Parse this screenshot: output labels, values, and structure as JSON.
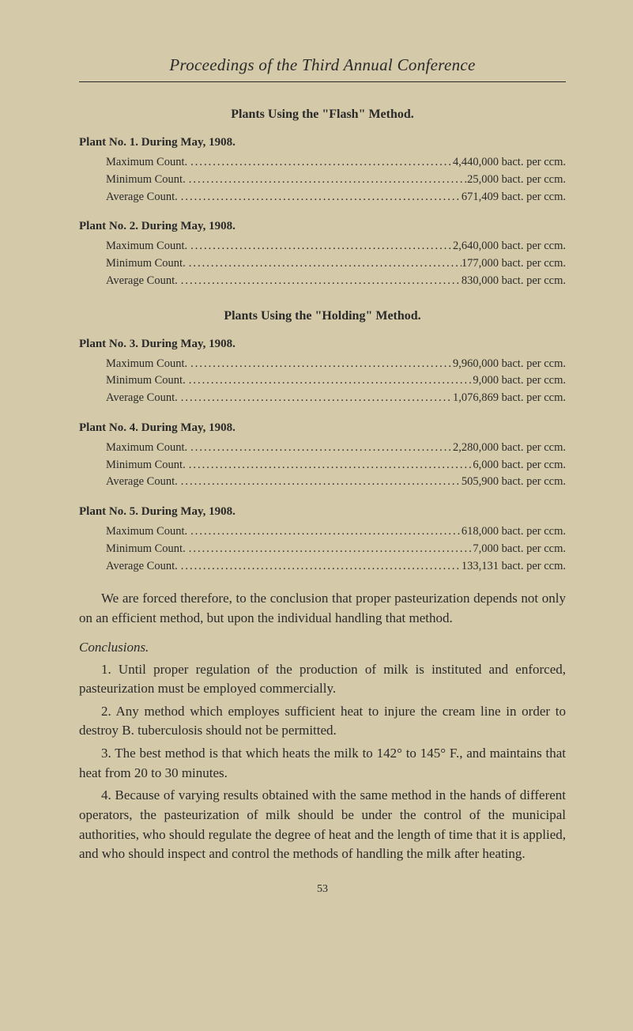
{
  "header": "Proceedings of the Third Annual Conference",
  "section1_title": "Plants Using the \"Flash\" Method.",
  "plants_flash": [
    {
      "heading": "Plant No. 1.  During May, 1908.",
      "rows": [
        {
          "label": "Maximum Count.",
          "value": "4,440,000 bact. per ccm."
        },
        {
          "label": "Minimum Count.",
          "value": "25,000 bact. per ccm."
        },
        {
          "label": "Average   Count.",
          "value": "671,409 bact. per ccm."
        }
      ]
    },
    {
      "heading": "Plant No. 2.  During May, 1908.",
      "rows": [
        {
          "label": "Maximum Count.",
          "value": "2,640,000 bact. per ccm."
        },
        {
          "label": "Minimum Count.",
          "value": "177,000 bact. per ccm."
        },
        {
          "label": "Average   Count.",
          "value": "830,000 bact. per ccm."
        }
      ]
    }
  ],
  "section2_title": "Plants Using the \"Holding\" Method.",
  "plants_holding": [
    {
      "heading": "Plant No. 3.  During May, 1908.",
      "rows": [
        {
          "label": "Maximum Count.",
          "value": "9,960,000 bact. per ccm."
        },
        {
          "label": "Minimum Count.",
          "value": "9,000 bact. per ccm."
        },
        {
          "label": "Average   Count.",
          "value": "1,076,869 bact. per ccm."
        }
      ]
    },
    {
      "heading": "Plant No. 4.  During May, 1908.",
      "rows": [
        {
          "label": "Maximum Count.",
          "value": "2,280,000 bact. per ccm."
        },
        {
          "label": "Minimum Count.",
          "value": "6,000 bact. per ccm."
        },
        {
          "label": "Average   Count.",
          "value": "505,900 bact. per ccm."
        }
      ]
    },
    {
      "heading": "Plant No. 5.  During May, 1908.",
      "rows": [
        {
          "label": "Maximum Count.",
          "value": "618,000 bact. per ccm."
        },
        {
          "label": "Minimum Count.",
          "value": "7,000 bact. per ccm."
        },
        {
          "label": "Average   Count.",
          "value": "133,131 bact. per ccm."
        }
      ]
    }
  ],
  "paragraph1": "We are forced therefore, to the conclusion that proper pasteurization depends not only on an efficient method, but upon the individual handling that method.",
  "conclusions_heading": "Conclusions.",
  "conclusions": [
    "1.  Until proper regulation of the production of milk is instituted and enforced, pasteurization must be employed commercially.",
    "2.  Any method which employes sufficient heat to injure the cream line in order to destroy B. tuberculosis should not be permitted.",
    "3.  The best method is that which heats the milk to 142° to 145° F., and maintains that heat from 20 to 30 minutes.",
    "4.  Because of varying results obtained with the same method in the hands of different operators, the pasteurization of milk should be under the control of the municipal authorities, who should regulate the degree of heat and the length of time that it is applied, and who should inspect and control the methods of handling the milk after heating."
  ],
  "page_number": "53"
}
